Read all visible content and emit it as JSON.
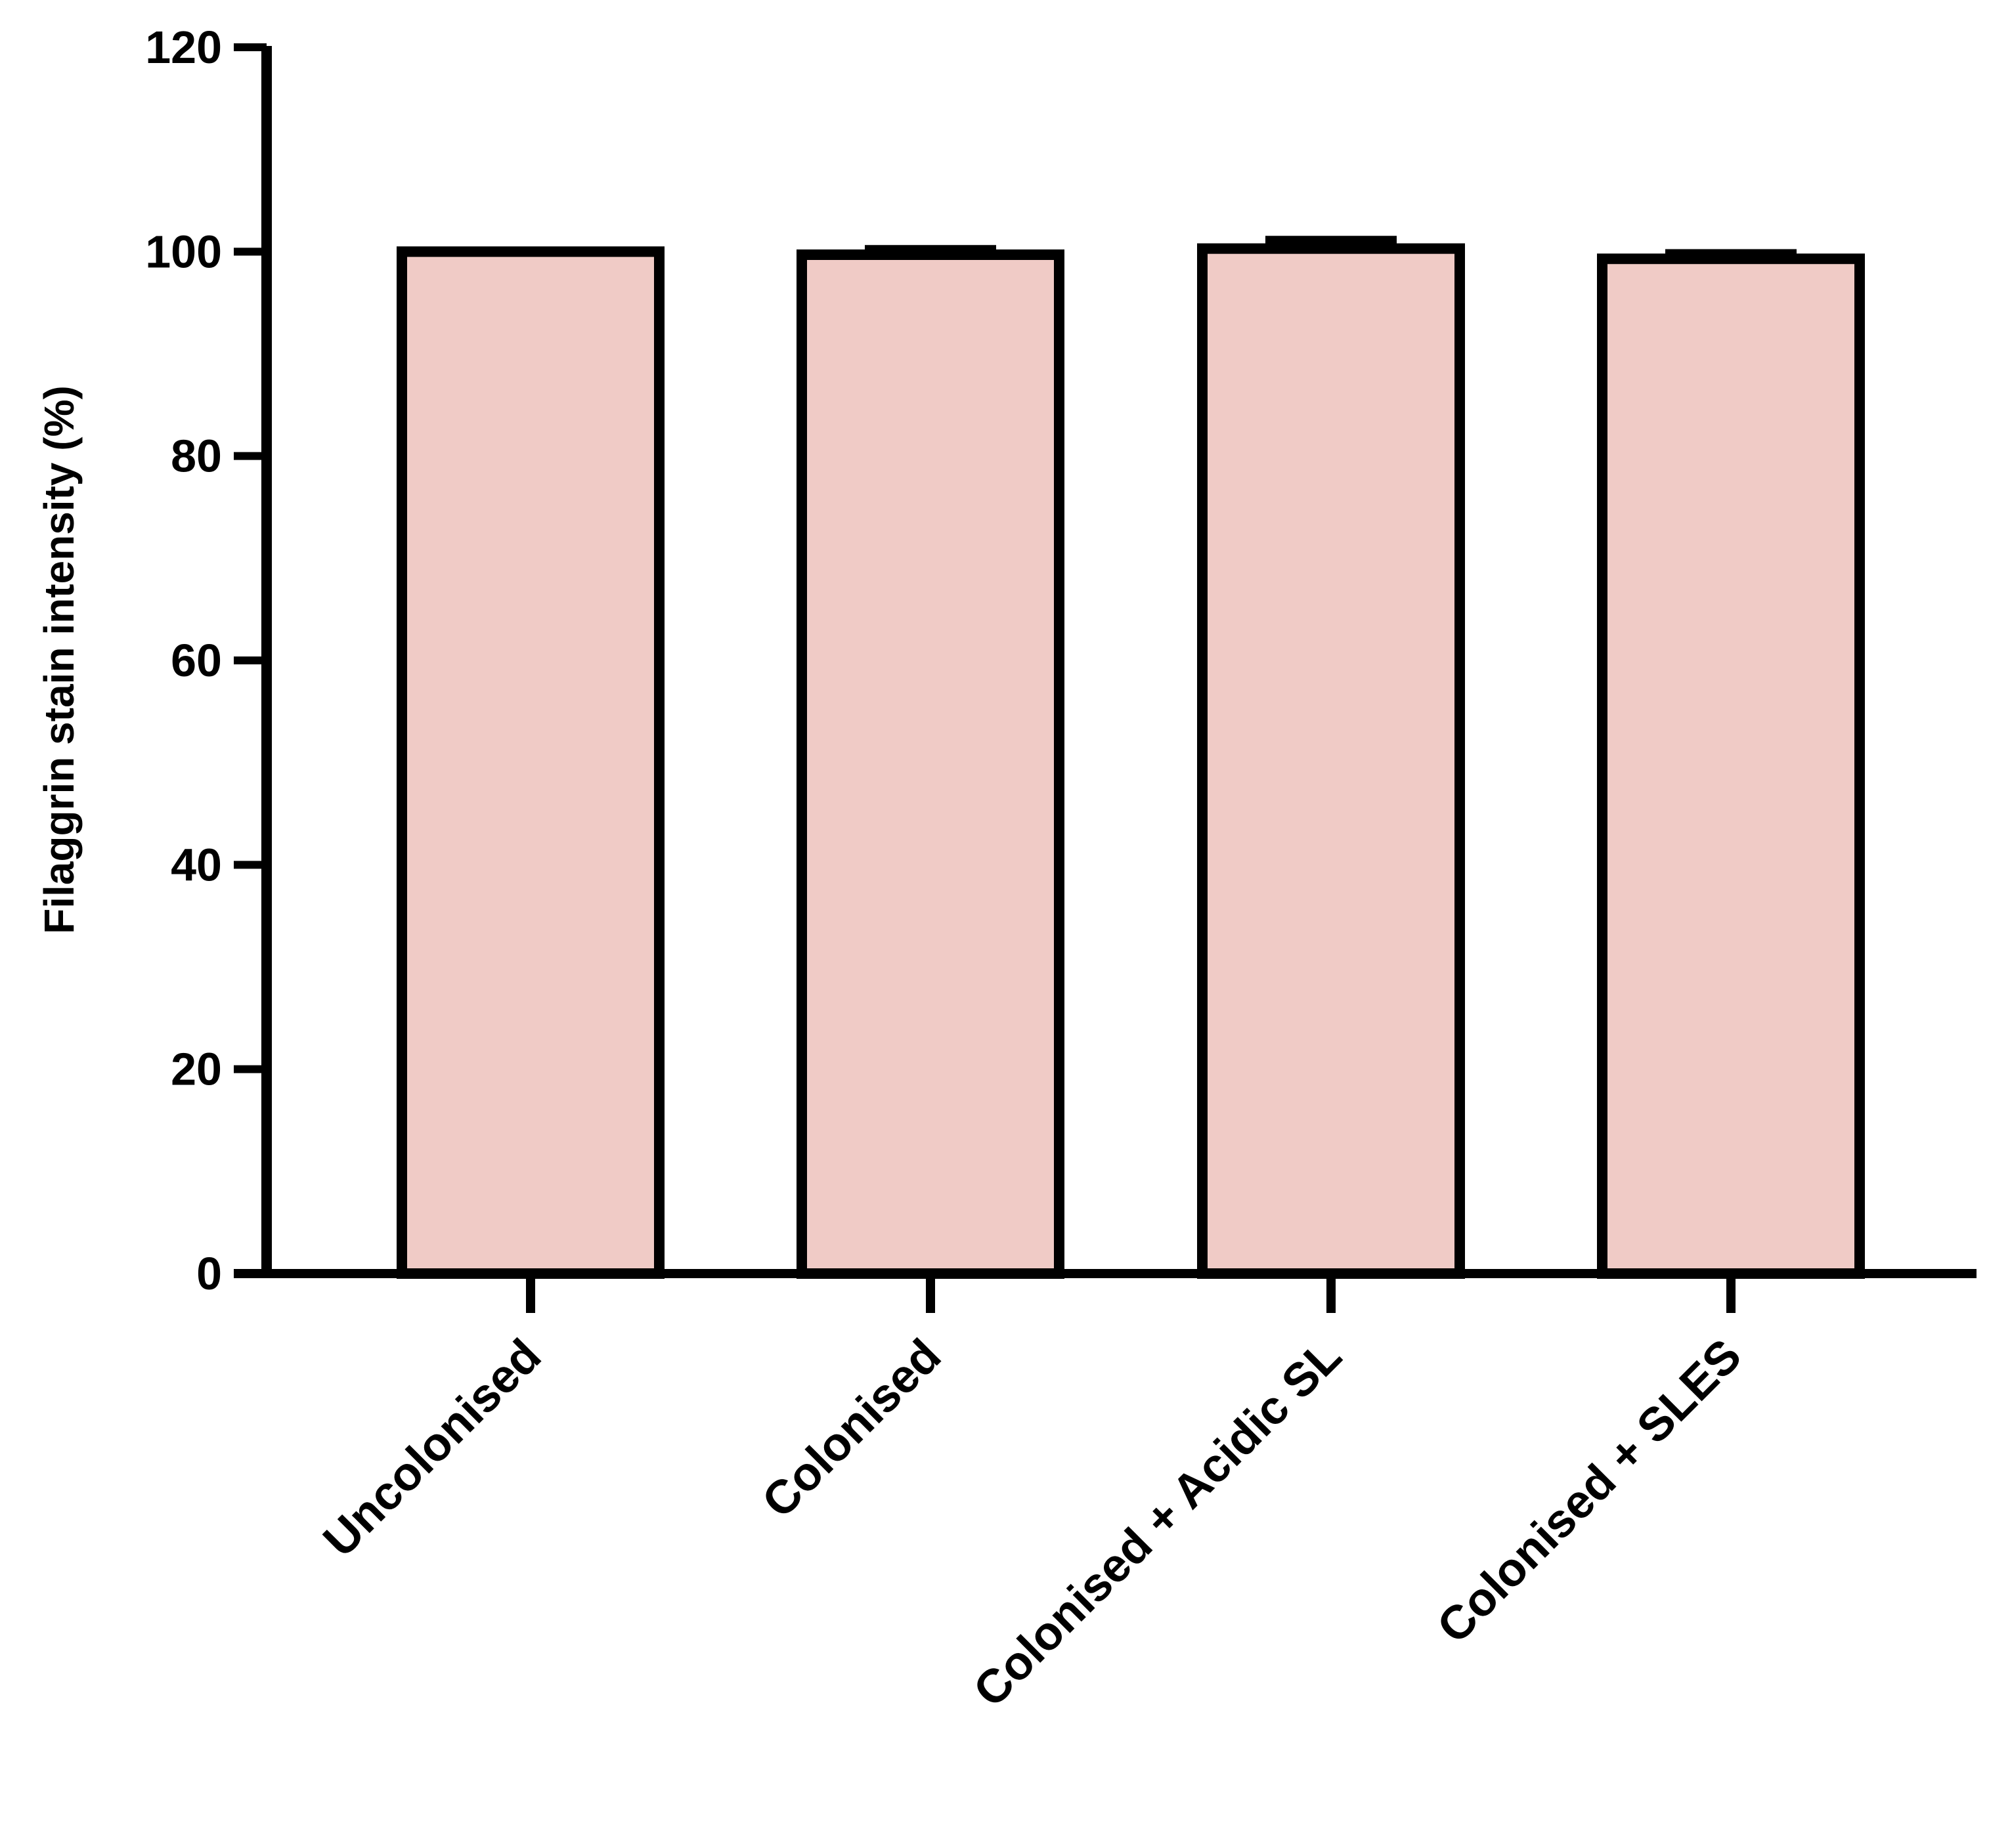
{
  "chart_data": {
    "type": "bar",
    "title": "",
    "xlabel": "",
    "ylabel": "Filaggrin stain intensity (%)",
    "ylim": [
      0,
      120
    ],
    "yticks": [
      0,
      20,
      40,
      60,
      80,
      100,
      120
    ],
    "grid": false,
    "legend": "none",
    "categories": [
      "Uncolonised",
      "Colonised",
      "Colonised + Acidic SL",
      "Colonised + SLES"
    ],
    "values": [
      100,
      99.7,
      100.3,
      99.3
    ],
    "error": [
      0,
      0.5,
      0.8,
      0.5
    ],
    "colors": {
      "bar_fill": "#f0cbc6",
      "bar_stroke": "#000000",
      "axis": "#000000"
    }
  }
}
